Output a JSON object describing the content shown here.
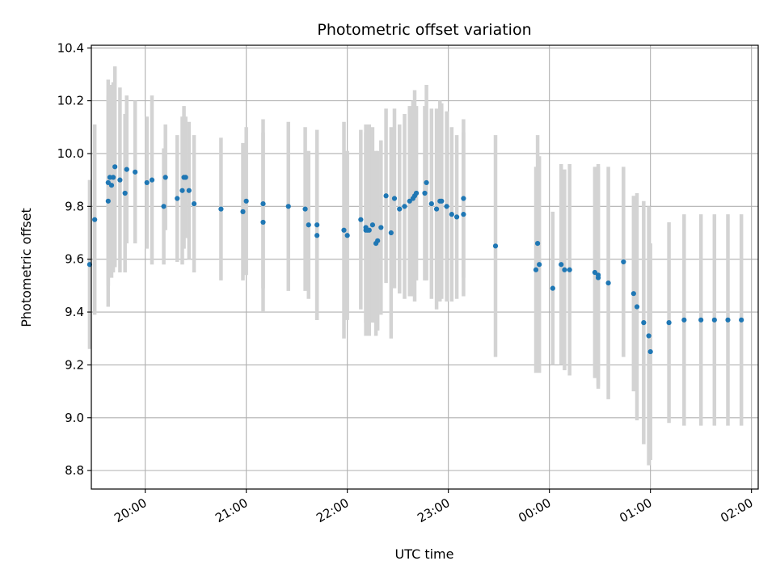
{
  "chart_data": {
    "type": "scatter",
    "title": "Photometric offset variation",
    "xlabel": "UTC time",
    "ylabel": "Photometric offset",
    "ylim": [
      8.73,
      10.41
    ],
    "yticks": [
      8.8,
      9.0,
      9.2,
      9.4,
      9.6,
      9.8,
      10.0,
      10.2,
      10.4
    ],
    "ytick_labels": [
      "8.8",
      "9.0",
      "9.2",
      "9.4",
      "9.6",
      "9.8",
      "10.0",
      "10.2",
      "10.4"
    ],
    "xlim": [
      "19:28",
      "02:04"
    ],
    "xticks": [
      "20:00",
      "21:00",
      "22:00",
      "23:00",
      "00:00",
      "01:00",
      "02:00"
    ],
    "xtick_labels": [
      "20:00",
      "21:00",
      "22:00",
      "23:00",
      "00:00",
      "01:00",
      "02:00"
    ],
    "grid": true,
    "colors": {
      "point": "#1f77b4",
      "errorbar": "#d3d3d3",
      "grid": "#b0b0b0"
    },
    "series": [
      {
        "x": [
          "19:27",
          "19:30",
          "19:38",
          "19:38",
          "19:39",
          "19:40",
          "19:41",
          "19:42",
          "19:45",
          "19:48",
          "19:49",
          "19:54",
          "20:01",
          "20:04",
          "20:11",
          "20:12",
          "20:19",
          "20:22",
          "20:23",
          "20:24",
          "20:26",
          "20:29",
          "20:45",
          "20:58",
          "21:00",
          "21:10",
          "21:10",
          "21:25",
          "21:35",
          "21:37",
          "21:42",
          "21:42",
          "21:58",
          "22:00",
          "22:08",
          "22:11",
          "22:11",
          "22:12",
          "22:13",
          "22:15",
          "22:17",
          "22:18",
          "22:20",
          "22:23",
          "22:26",
          "22:28",
          "22:31",
          "22:34",
          "22:37",
          "22:39",
          "22:40",
          "22:41",
          "22:46",
          "22:47",
          "22:50",
          "22:53",
          "22:55",
          "22:56",
          "22:59",
          "23:02",
          "23:05",
          "23:09",
          "23:09",
          "23:28",
          "23:52",
          "23:53",
          "23:54",
          "24:02",
          "24:07",
          "24:09",
          "24:12",
          "24:27",
          "24:29",
          "24:29",
          "24:35",
          "24:44",
          "24:50",
          "24:52",
          "24:56",
          "24:59",
          "25:00",
          "25:11",
          "25:20",
          "25:30",
          "25:38",
          "25:46",
          "25:54"
        ],
        "y": [
          9.58,
          9.75,
          9.89,
          9.82,
          9.91,
          9.88,
          9.91,
          9.95,
          9.9,
          9.85,
          9.94,
          9.93,
          9.89,
          9.9,
          9.8,
          9.91,
          9.83,
          9.86,
          9.91,
          9.91,
          9.86,
          9.81,
          9.79,
          9.78,
          9.82,
          9.74,
          9.81,
          9.8,
          9.79,
          9.73,
          9.69,
          9.73,
          9.71,
          9.69,
          9.75,
          9.72,
          9.71,
          9.71,
          9.71,
          9.73,
          9.66,
          9.67,
          9.72,
          9.84,
          9.7,
          9.83,
          9.79,
          9.8,
          9.82,
          9.83,
          9.84,
          9.85,
          9.85,
          9.89,
          9.81,
          9.79,
          9.82,
          9.82,
          9.8,
          9.77,
          9.76,
          9.83,
          9.77,
          9.65,
          9.56,
          9.66,
          9.58,
          9.49,
          9.58,
          9.56,
          9.56,
          9.55,
          9.53,
          9.54,
          9.51,
          9.59,
          9.47,
          9.42,
          9.36,
          9.31,
          9.25,
          9.36,
          9.37,
          9.37,
          9.37,
          9.37,
          9.37
        ],
        "yerr": [
          0.32,
          0.36,
          0.39,
          0.4,
          0.35,
          0.35,
          0.36,
          0.38,
          0.35,
          0.3,
          0.28,
          0.27,
          0.25,
          0.32,
          0.22,
          0.2,
          0.24,
          0.28,
          0.27,
          0.23,
          0.26,
          0.26,
          0.27,
          0.26,
          0.28,
          0.34,
          0.32,
          0.32,
          0.31,
          0.28,
          0.32,
          0.36,
          0.41,
          0.32,
          0.34,
          0.36,
          0.4,
          0.37,
          0.4,
          0.37,
          0.35,
          0.34,
          0.33,
          0.33,
          0.4,
          0.34,
          0.32,
          0.35,
          0.36,
          0.37,
          0.4,
          0.33,
          0.33,
          0.37,
          0.36,
          0.38,
          0.38,
          0.37,
          0.36,
          0.33,
          0.31,
          0.3,
          0.31,
          0.42,
          0.39,
          0.41,
          0.41,
          0.29,
          0.38,
          0.38,
          0.4,
          0.4,
          0.42,
          0.42,
          0.44,
          0.36,
          0.37,
          0.43,
          0.46,
          0.49,
          0.41,
          0.38,
          0.4,
          0.4,
          0.4,
          0.4,
          0.4
        ]
      }
    ]
  }
}
